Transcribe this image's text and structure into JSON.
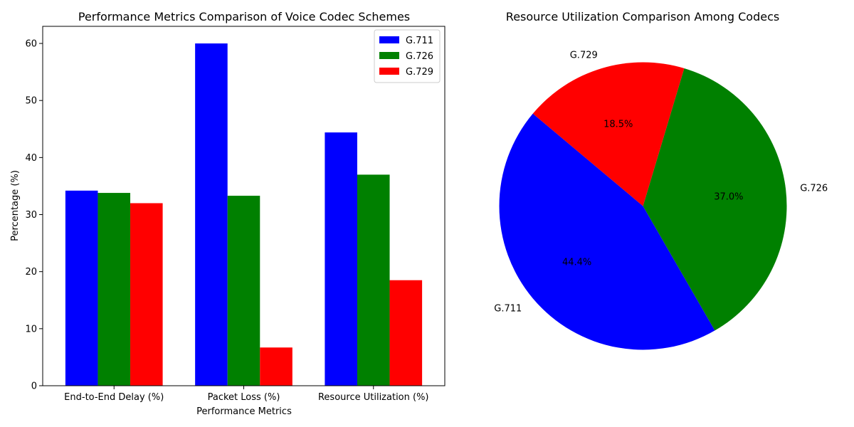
{
  "chart_data": [
    {
      "type": "bar",
      "title": "Performance Metrics Comparison of Voice Codec Schemes",
      "xlabel": "Performance Metrics",
      "ylabel": "Percentage (%)",
      "ylim": [
        0,
        63
      ],
      "yticks": [
        0,
        10,
        20,
        30,
        40,
        50,
        60
      ],
      "categories": [
        "End-to-End Delay (%)",
        "Packet Loss (%)",
        "Resource Utilization (%)"
      ],
      "series": [
        {
          "name": "G.711",
          "color": "#0000ff",
          "values": [
            34.2,
            60.0,
            44.4
          ]
        },
        {
          "name": "G.726",
          "color": "#008000",
          "values": [
            33.8,
            33.3,
            37.0
          ]
        },
        {
          "name": "G.729",
          "color": "#ff0000",
          "values": [
            32.0,
            6.7,
            18.5
          ]
        }
      ],
      "legend": "top-right",
      "grid": false
    },
    {
      "type": "pie",
      "title": "Resource Utilization Comparison Among Codecs",
      "slices": [
        {
          "label": "G.711",
          "value": 44.4,
          "pct_label": "44.4%",
          "color": "#0000ff"
        },
        {
          "label": "G.726",
          "value": 37.0,
          "pct_label": "37.0%",
          "color": "#008000"
        },
        {
          "label": "G.729",
          "value": 18.5,
          "pct_label": "18.5%",
          "color": "#ff0000"
        }
      ],
      "start_angle": 140,
      "direction": "counterclockwise"
    }
  ]
}
